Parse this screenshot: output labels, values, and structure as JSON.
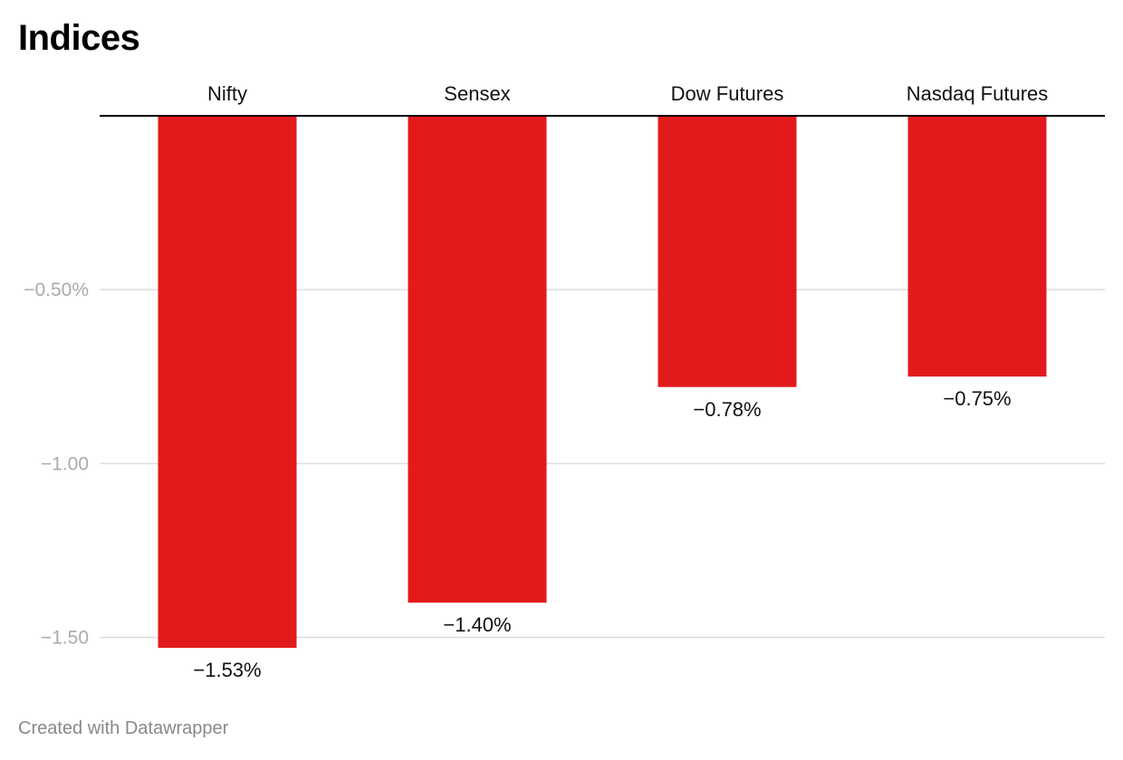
{
  "title": "Indices",
  "footer": "Created with Datawrapper",
  "colors": {
    "bar": "#e31a1c",
    "axis": "#000000",
    "grid": "#dddddd",
    "tick_text": "#aaaaaa",
    "label_text": "#111111"
  },
  "chart_data": {
    "type": "bar",
    "categories": [
      "Nifty",
      "Sensex",
      "Dow Futures",
      "Nasdaq Futures"
    ],
    "values": [
      -1.53,
      -1.4,
      -0.78,
      -0.75
    ],
    "value_labels": [
      "−1.53%",
      "−1.40%",
      "−0.78%",
      "−0.75%"
    ],
    "title": "Indices",
    "xlabel": "",
    "ylabel": "",
    "ylim": [
      -1.53,
      0
    ],
    "yticks": [
      -0.5,
      -1.0,
      -1.5
    ],
    "ytick_labels": [
      "−0.50%",
      "−1.00",
      "−1.50"
    ],
    "category_axis_position": "top",
    "grid": true,
    "legend": "none"
  }
}
